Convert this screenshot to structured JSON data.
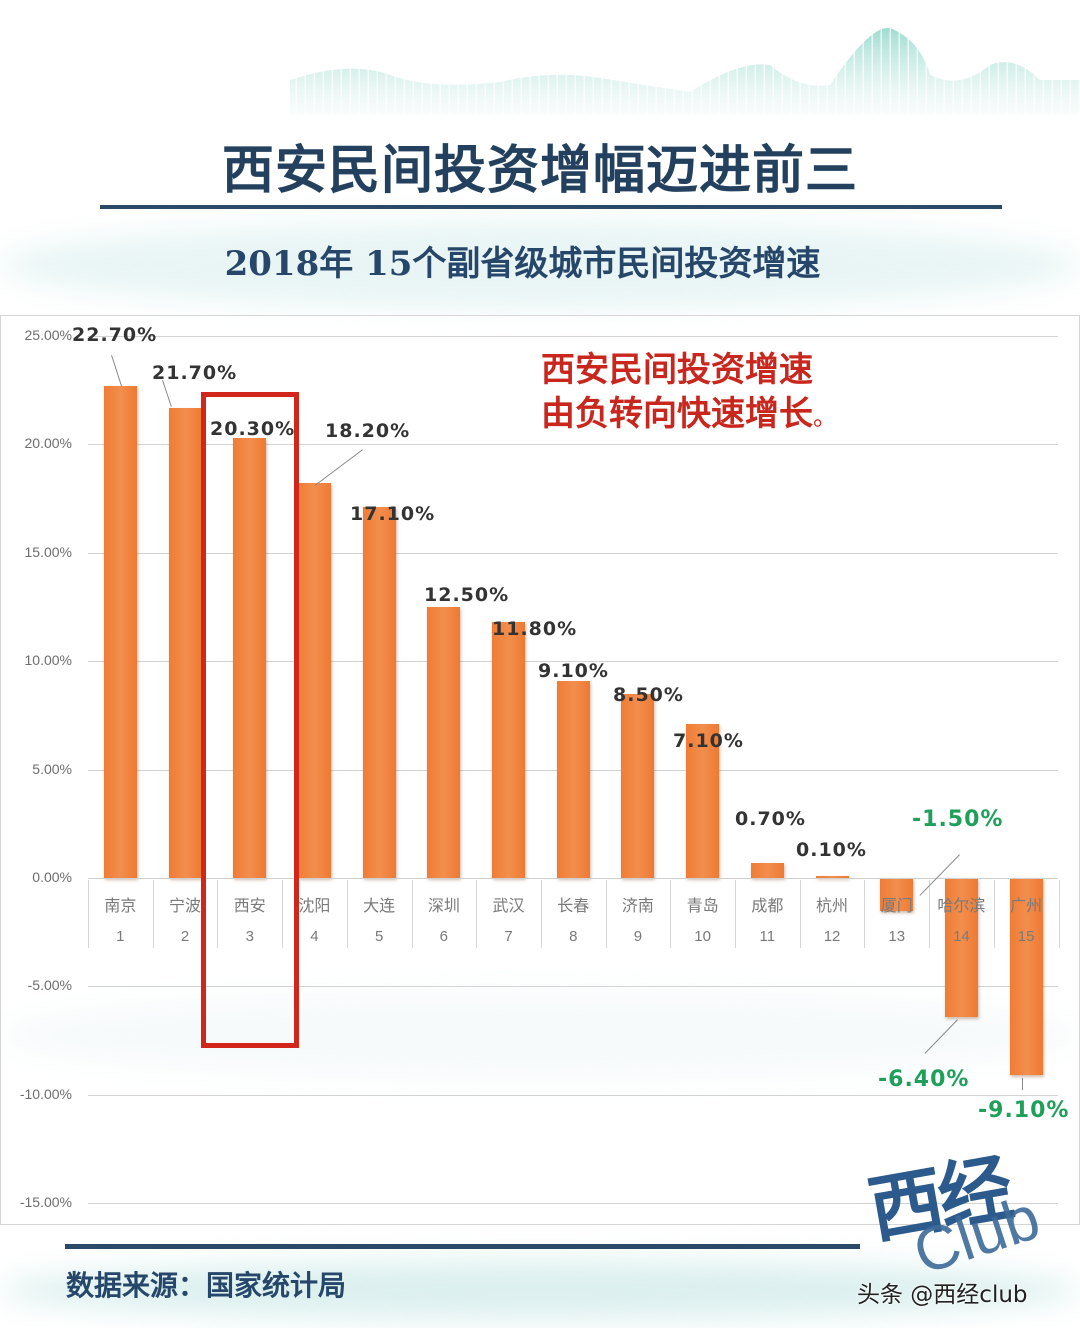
{
  "header": {
    "title": "西安民间投资增幅迈进前三",
    "subtitle": "2018年 15个副省级城市民间投资增速"
  },
  "callout": {
    "line1": "西安民间投资增速",
    "line2": "由负转向快速增长",
    "end_mark": "。"
  },
  "footer": {
    "source": "数据来源：国家统计局",
    "logo_cn": "西经",
    "logo_en": "Club",
    "watermark": "头条 @西经club"
  },
  "colors": {
    "bar": "#ef7c35",
    "positive_label": "#333333",
    "negative_label": "#1fa05a",
    "highlight_box": "#d3261b",
    "title": "#23415f",
    "callout": "#c9271d"
  },
  "chart_data": {
    "type": "bar",
    "title": "2018年 15个副省级城市民间投资增速",
    "xlabel": "",
    "ylabel": "",
    "ylim": [
      -15,
      25
    ],
    "yticks": [
      "25.00%",
      "20.00%",
      "15.00%",
      "10.00%",
      "5.00%",
      "0.00%",
      "-5.00%",
      "-10.00%",
      "-15.00%"
    ],
    "grid": true,
    "legend": null,
    "categories": [
      "南京",
      "宁波",
      "西安",
      "沈阳",
      "大连",
      "深圳",
      "武汉",
      "长春",
      "济南",
      "青岛",
      "成都",
      "杭州",
      "厦门",
      "哈尔滨",
      "广州"
    ],
    "ranks": [
      "1",
      "2",
      "3",
      "4",
      "5",
      "6",
      "7",
      "8",
      "9",
      "10",
      "11",
      "12",
      "13",
      "14",
      "15"
    ],
    "values": [
      22.7,
      21.7,
      20.3,
      18.2,
      17.1,
      12.5,
      11.8,
      9.1,
      8.5,
      7.1,
      0.7,
      0.1,
      -1.5,
      -6.4,
      -9.1
    ],
    "labels": [
      "22.70%",
      "21.70%",
      "20.30%",
      "18.20%",
      "17.10%",
      "12.50%",
      "11.80%",
      "9.10%",
      "8.50%",
      "7.10%",
      "0.70%",
      "0.10%",
      "-1.50%",
      "-6.40%",
      "-9.10%"
    ],
    "highlighted_category": "西安",
    "annotation": "西安民间投资增速由负转向快速增长。"
  }
}
